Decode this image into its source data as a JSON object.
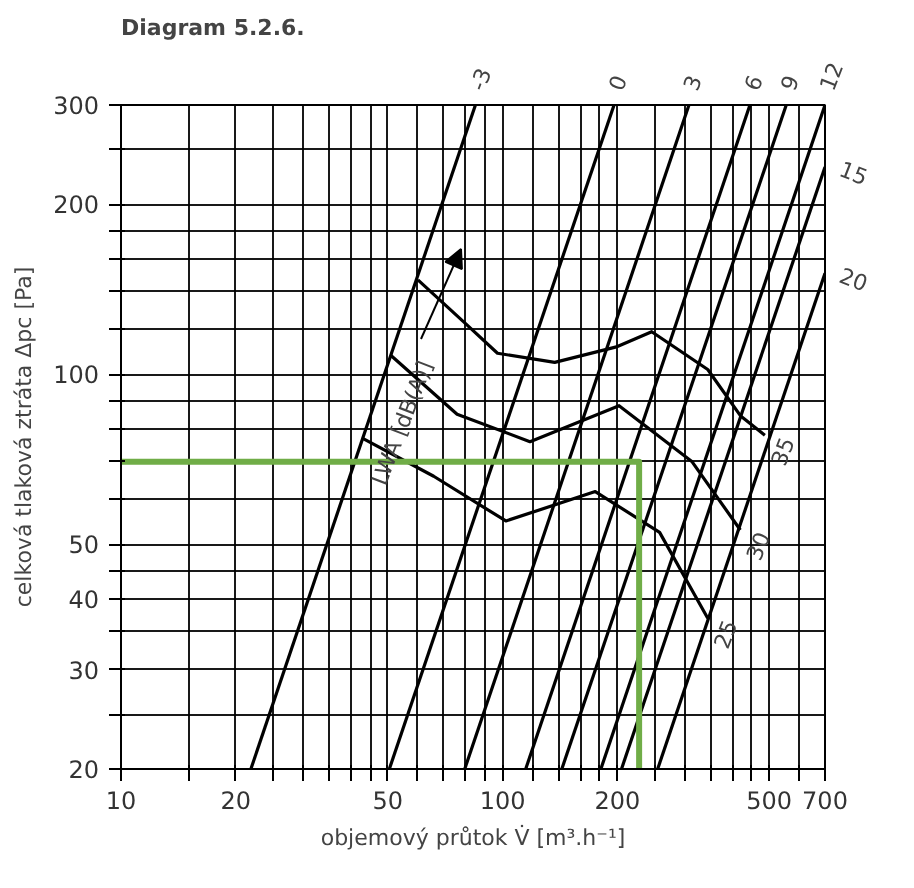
{
  "chart_data": {
    "type": "line",
    "title": "Diagram 5.2.6.",
    "xlabel": "objemový průtok V̇ [m³.h⁻¹]",
    "ylabel": "celková tlaková ztráta Δpc [Pa]",
    "log": "xy",
    "grid": true,
    "line_style": "solid",
    "xlim": [
      10,
      700
    ],
    "ylim": [
      20,
      300
    ],
    "xticks": [
      10,
      {
        "value": 15,
        "label": null
      },
      20,
      {
        "value": 25,
        "label": null
      },
      {
        "value": 30,
        "label": null
      },
      {
        "value": 35,
        "label": null
      },
      {
        "value": 40,
        "label": null
      },
      {
        "value": 45,
        "label": null
      },
      50,
      {
        "value": 60,
        "label": null
      },
      {
        "value": 70,
        "label": null
      },
      {
        "value": 80,
        "label": null
      },
      {
        "value": 90,
        "label": null
      },
      100,
      {
        "value": 120,
        "label": null
      },
      {
        "value": 140,
        "label": null
      },
      {
        "value": 160,
        "label": null
      },
      {
        "value": 180,
        "label": null
      },
      200,
      {
        "value": 250,
        "label": null
      },
      {
        "value": 300,
        "label": null
      },
      {
        "value": 350,
        "label": null
      },
      {
        "value": 400,
        "label": null
      },
      {
        "value": 450,
        "label": null
      },
      500,
      {
        "value": 600,
        "label": null
      },
      700
    ],
    "yticks": [
      20,
      {
        "value": 25,
        "label": null
      },
      30,
      {
        "value": 35,
        "label": null
      },
      40,
      {
        "value": 45,
        "label": null
      },
      50,
      {
        "value": 60,
        "label": null
      },
      {
        "value": 70,
        "label": null
      },
      {
        "value": 80,
        "label": null
      },
      {
        "value": 90,
        "label": null
      },
      100,
      {
        "value": 120,
        "label": null
      },
      {
        "value": 140,
        "label": null
      },
      {
        "value": 160,
        "label": null
      },
      {
        "value": 180,
        "label": null
      },
      200,
      {
        "value": 250,
        "label": null
      },
      300
    ],
    "annotations": [
      "LWA [dB(A)]"
    ],
    "series": [
      {
        "name": "-3",
        "color": "#000000",
        "x": [
          21.9,
          84.9
        ],
        "values": [
          20,
          300
        ]
      },
      {
        "name": "0",
        "color": "#000000",
        "x": [
          50.5,
          196
        ],
        "values": [
          20,
          300
        ]
      },
      {
        "name": "3",
        "color": "#000000",
        "x": [
          79.6,
          308
        ],
        "values": [
          20,
          300
        ]
      },
      {
        "name": "6",
        "color": "#000000",
        "x": [
          115,
          445
        ],
        "values": [
          20,
          300
        ]
      },
      {
        "name": "9",
        "color": "#000000",
        "x": [
          143,
          554
        ],
        "values": [
          20,
          300
        ]
      },
      {
        "name": "12",
        "color": "#000000",
        "x": [
          181,
          700
        ],
        "values": [
          20,
          300
        ]
      },
      {
        "name": "15",
        "color": "#000000",
        "x": [
          205,
          700
        ],
        "values": [
          20,
          233
        ]
      },
      {
        "name": "20",
        "color": "#000000",
        "x": [
          255,
          700
        ],
        "values": [
          20,
          151
        ]
      },
      {
        "name": "35",
        "color": "#000000",
        "x": [
          60,
          80,
          97,
          137,
          200,
          246,
          345,
          420,
          487
        ],
        "values": [
          147,
          123,
          109,
          105,
          112,
          119,
          102,
          84.5,
          78
        ]
      },
      {
        "name": "30",
        "color": "#000000",
        "x": [
          51,
          76,
          118,
          202,
          314,
          420
        ],
        "values": [
          108,
          85,
          76,
          88,
          70,
          53
        ]
      },
      {
        "name": "25",
        "color": "#000000",
        "x": [
          43,
          66,
          102,
          175,
          258,
          345
        ],
        "values": [
          77,
          66,
          55,
          62,
          52.5,
          37
        ]
      },
      {
        "color": "#70ad47",
        "x": [
          10,
          228,
          228
        ],
        "values": [
          70,
          70,
          20
        ]
      }
    ]
  }
}
